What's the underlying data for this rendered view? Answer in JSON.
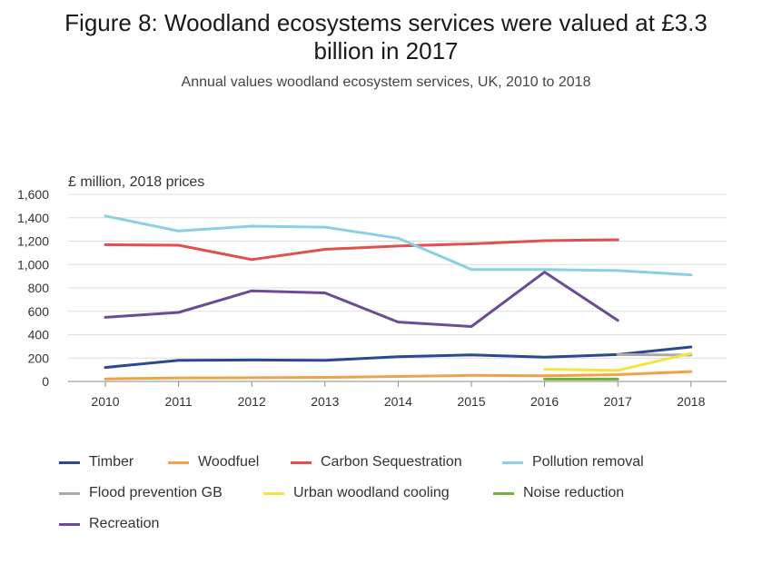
{
  "header": {
    "title": "Figure 8: Woodland ecosystems services were valued at £3.3 billion in 2017",
    "subtitle": "Annual values woodland ecosystem services, UK, 2010 to 2018"
  },
  "chart_data": {
    "type": "line",
    "ylabel": "£ million, 2018 prices",
    "ylim": [
      0,
      1600
    ],
    "yticks": [
      "0",
      "200",
      "400",
      "600",
      "800",
      "1,000",
      "1,200",
      "1,400",
      "1,600"
    ],
    "ytick_values": [
      0,
      200,
      400,
      600,
      800,
      1000,
      1200,
      1400,
      1600
    ],
    "x": [
      "2010",
      "2011",
      "2012",
      "2013",
      "2014",
      "2015",
      "2016",
      "2017",
      "2018"
    ],
    "grid": "horizontal",
    "legend_position": "bottom",
    "series": [
      {
        "name": "Timber",
        "color": "#2b4a8c",
        "values": [
          120,
          180,
          183,
          180,
          212,
          227,
          207,
          230,
          295
        ]
      },
      {
        "name": "Woodfuel",
        "color": "#f0a24a",
        "values": [
          22,
          30,
          32,
          35,
          43,
          52,
          48,
          58,
          85
        ]
      },
      {
        "name": "Carbon Sequestration",
        "color": "#e0504f",
        "values": [
          1170,
          1165,
          1042,
          1130,
          1158,
          1177,
          1204,
          1212,
          null
        ]
      },
      {
        "name": "Pollution removal",
        "color": "#8ccfe5",
        "values": [
          1415,
          1287,
          1328,
          1320,
          1225,
          958,
          958,
          948,
          912
        ]
      },
      {
        "name": "Flood prevention GB",
        "color": "#a9a9a9",
        "values": [
          null,
          null,
          null,
          null,
          null,
          null,
          null,
          230,
          225
        ]
      },
      {
        "name": "Urban woodland cooling",
        "color": "#f2e63c",
        "values": [
          null,
          null,
          null,
          null,
          null,
          null,
          105,
          95,
          240
        ]
      },
      {
        "name": "Noise reduction",
        "color": "#72b03a",
        "values": [
          null,
          null,
          null,
          null,
          null,
          null,
          20,
          20,
          null
        ]
      },
      {
        "name": "Recreation",
        "color": "#6a4c96",
        "values": [
          548,
          590,
          775,
          757,
          508,
          470,
          935,
          523,
          null
        ]
      }
    ]
  }
}
